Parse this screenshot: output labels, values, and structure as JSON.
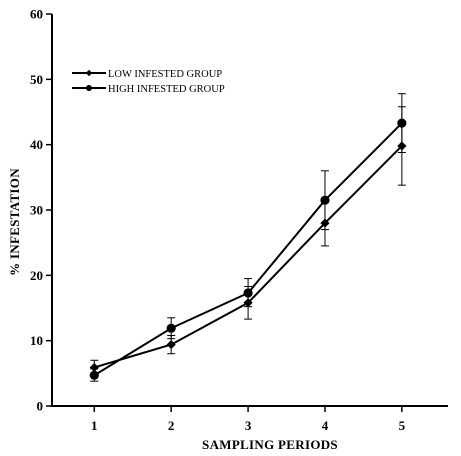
{
  "chart_data": {
    "type": "line",
    "title": "",
    "xlabel": "SAMPLING PERIODS",
    "ylabel": "% INFESTATION",
    "x": [
      1,
      2,
      3,
      4,
      5
    ],
    "xticks": [
      "1",
      "2",
      "3",
      "4",
      "5"
    ],
    "xlim": [
      0.45,
      5.6
    ],
    "ylim": [
      0,
      60
    ],
    "yticks": [
      0,
      10,
      20,
      30,
      40,
      50,
      60
    ],
    "grid": false,
    "legend_position": "top-left",
    "series": [
      {
        "name": "LOW INFESTED GROUP",
        "marker": "diamond",
        "values": [
          5.9,
          9.4,
          15.8,
          28.0,
          39.8
        ],
        "err_low": [
          4.9,
          8.0,
          13.3,
          24.5,
          33.8
        ],
        "err_high": [
          7.0,
          10.8,
          18.3,
          31.5,
          45.8
        ]
      },
      {
        "name": "HIGH INFESTED GROUP",
        "marker": "circle",
        "values": [
          4.7,
          11.9,
          17.3,
          31.5,
          43.3
        ],
        "err_low": [
          3.8,
          10.3,
          15.2,
          27.0,
          38.8
        ],
        "err_high": [
          5.7,
          13.5,
          19.5,
          36.0,
          47.8
        ]
      }
    ]
  }
}
